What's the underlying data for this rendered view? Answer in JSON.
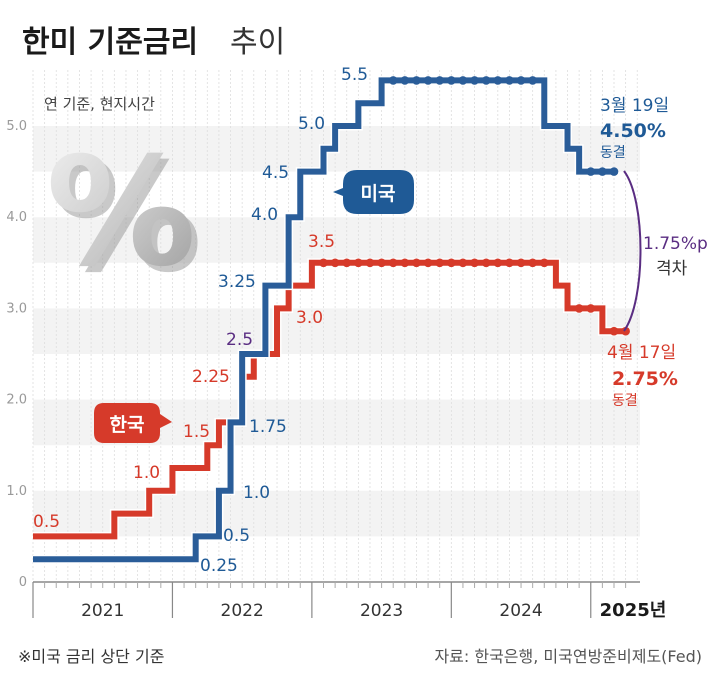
{
  "header": {
    "title_bold": "한미 기준금리",
    "title_light": "추이"
  },
  "subtitle": "연 기준, 현지시간",
  "footnote": "※미국 금리 상단 기준",
  "source": "자료: 한국은행, 미국연방준비제도(Fed)",
  "percent_symbol": "%",
  "colors": {
    "us": "#2a5d99",
    "korea": "#d63a2a",
    "gap": "#5a2d82"
  },
  "legend": {
    "us": "미국",
    "korea": "한국"
  },
  "annotations": {
    "us_latest": {
      "date": "3월 19일",
      "rate": "4.50%",
      "status": "동결"
    },
    "kr_latest": {
      "date": "4월 17일",
      "rate": "2.75%",
      "status": "동결"
    },
    "gap": {
      "value": "1.75%p",
      "label": "격차"
    }
  },
  "chart_data": {
    "type": "line",
    "title": "한미 기준금리 추이",
    "x_axis": {
      "labels": [
        "2021",
        "2022",
        "2023",
        "2024",
        "2025년"
      ],
      "range": [
        "2021-01",
        "2025-04"
      ]
    },
    "y_axis": {
      "ticks": [
        "0",
        "1.0",
        "2.0",
        "3.0",
        "4.0",
        "5.0"
      ],
      "ylim": [
        0,
        5.5
      ]
    },
    "series": [
      {
        "name": "미국",
        "steps": [
          {
            "date": "2021-01",
            "value": 0.25
          },
          {
            "date": "2022-03",
            "value": 0.5
          },
          {
            "date": "2022-05",
            "value": 1.0
          },
          {
            "date": "2022-06",
            "value": 1.75
          },
          {
            "date": "2022-07",
            "value": 2.5
          },
          {
            "date": "2022-09",
            "value": 3.25
          },
          {
            "date": "2022-11",
            "value": 4.0
          },
          {
            "date": "2022-12",
            "value": 4.5
          },
          {
            "date": "2023-02",
            "value": 4.75
          },
          {
            "date": "2023-03",
            "value": 5.0
          },
          {
            "date": "2023-05",
            "value": 5.25
          },
          {
            "date": "2023-07",
            "value": 5.5
          },
          {
            "date": "2024-09",
            "value": 5.0
          },
          {
            "date": "2024-11",
            "value": 4.75
          },
          {
            "date": "2024-12",
            "value": 4.5
          }
        ],
        "end": "2025-03"
      },
      {
        "name": "한국",
        "steps": [
          {
            "date": "2021-01",
            "value": 0.5
          },
          {
            "date": "2021-08",
            "value": 0.75
          },
          {
            "date": "2021-11",
            "value": 1.0
          },
          {
            "date": "2022-01",
            "value": 1.25
          },
          {
            "date": "2022-04",
            "value": 1.5
          },
          {
            "date": "2022-05",
            "value": 1.75
          },
          {
            "date": "2022-07",
            "value": 2.25
          },
          {
            "date": "2022-08",
            "value": 2.5
          },
          {
            "date": "2022-10",
            "value": 3.0
          },
          {
            "date": "2022-11",
            "value": 3.25
          },
          {
            "date": "2023-01",
            "value": 3.5
          },
          {
            "date": "2024-10",
            "value": 3.25
          },
          {
            "date": "2024-11",
            "value": 3.0
          },
          {
            "date": "2025-02",
            "value": 2.75
          }
        ],
        "end": "2025-04"
      }
    ],
    "value_labels": {
      "us": [
        "0.25",
        "0.5",
        "1.0",
        "1.75",
        "2.5",
        "3.25",
        "4.0",
        "4.5",
        "5.0",
        "5.5"
      ],
      "korea": [
        "0.5",
        "1.0",
        "1.5",
        "2.25",
        "3.0",
        "3.5"
      ]
    }
  }
}
